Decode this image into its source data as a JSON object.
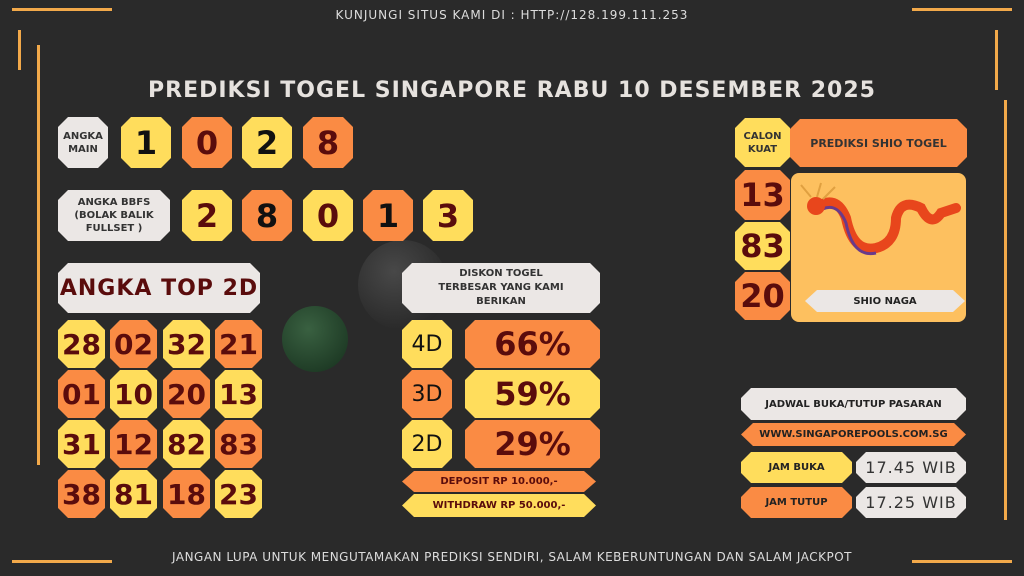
{
  "header": {
    "visit_text": "KUNJUNGI SITUS KAMI DI : HTTP://128.199.111.253",
    "title": "PREDIKSI TOGEL SINGAPORE RABU 10 DESEMBER 2025"
  },
  "angka_main": {
    "label": "ANGKA MAIN",
    "digits": [
      "1",
      "0",
      "2",
      "8"
    ]
  },
  "bbfs": {
    "label": "ANGKA BBFS (BOLAK BALIK FULLSET )",
    "digits": [
      "2",
      "8",
      "0",
      "1",
      "3"
    ]
  },
  "top2d": {
    "title": "ANGKA TOP 2D",
    "rows": [
      [
        "28",
        "02",
        "32",
        "21"
      ],
      [
        "01",
        "10",
        "20",
        "13"
      ],
      [
        "31",
        "12",
        "82",
        "83"
      ],
      [
        "38",
        "81",
        "18",
        "23"
      ]
    ]
  },
  "diskon": {
    "title": "DISKON TOGEL TERBESAR YANG KAMI BERIKAN",
    "items": [
      {
        "label": "4D",
        "value": "66%"
      },
      {
        "label": "3D",
        "value": "59%"
      },
      {
        "label": "2D",
        "value": "29%"
      }
    ],
    "deposit": "DEPOSIT RP 10.000,-",
    "withdraw": "WITHDRAW RP 50.000,-"
  },
  "shio": {
    "calon_label": "CALON KUAT",
    "title": "PREDIKSI SHIO TOGEL",
    "numbers": [
      "13",
      "83",
      "20"
    ],
    "name": "SHIO NAGA",
    "icon": "dragon-icon"
  },
  "jadwal": {
    "title": "JADWAL BUKA/TUTUP PASARAN",
    "url": "WWW.SINGAPOREPOOLS.COM.SG",
    "buka_label": "JAM BUKA",
    "buka_value": "17.45 WIB",
    "tutup_label": "JAM TUTUP",
    "tutup_value": "17.25 WIB"
  },
  "footer": {
    "text": "JANGAN LUPA UNTUK MENGUTAMAKAN PREDIKSI SENDIRI, SALAM KEBERUNTUNGAN DAN SALAM JACKPOT"
  },
  "colors": {
    "yellow": "#ffdd5c",
    "orange": "#fa8b44",
    "light": "#ebe7e5",
    "dark_red": "#5a0c0c",
    "frame": "#f2a94a"
  }
}
